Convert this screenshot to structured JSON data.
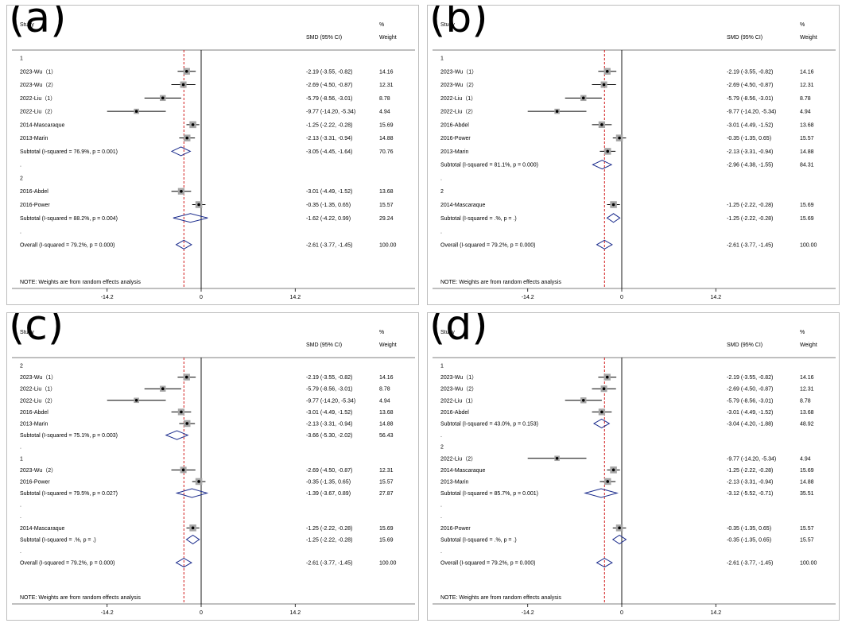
{
  "colors": {
    "ref_line": "#cc0000",
    "diamond": "#1a2b8c",
    "marker_box": "#a6a6a6",
    "frame": "#bdbdbd"
  },
  "headers": {
    "study": "Study",
    "smd": "SMD (95% CI)",
    "weight_pct": "%",
    "weight": "Weight"
  },
  "chart_data": [
    {
      "type": "forest",
      "panel_label": "(a)",
      "x_ticks": [
        -14.2,
        0,
        14.2
      ],
      "x_tick_labels": [
        "-14.2",
        "0",
        "14.2"
      ],
      "overall_line": -2.61,
      "note": "NOTE: Weights are from random effects analysis",
      "rows": [
        {
          "kind": "group",
          "label": "1"
        },
        {
          "kind": "study",
          "label": "2023-Wu（1）",
          "smd": -2.19,
          "lo": -3.55,
          "hi": -0.82,
          "ci": "-2.19 (-3.55, -0.82)",
          "weight": "14.16"
        },
        {
          "kind": "study",
          "label": "2023-Wu（2）",
          "smd": -2.69,
          "lo": -4.5,
          "hi": -0.87,
          "ci": "-2.69 (-4.50, -0.87)",
          "weight": "12.31"
        },
        {
          "kind": "study",
          "label": "2022-Liu（1）",
          "smd": -5.79,
          "lo": -8.56,
          "hi": -3.01,
          "ci": "-5.79 (-8.56, -3.01)",
          "weight": "8.78"
        },
        {
          "kind": "study",
          "label": "2022-Liu（2）",
          "smd": -9.77,
          "lo": -14.2,
          "hi": -5.34,
          "ci": "-9.77 (-14.20, -5.34)",
          "weight": "4.94"
        },
        {
          "kind": "study",
          "label": "2014-Mascaraque",
          "smd": -1.25,
          "lo": -2.22,
          "hi": -0.28,
          "ci": "-1.25 (-2.22, -0.28)",
          "weight": "15.69"
        },
        {
          "kind": "study",
          "label": "2013-Marin",
          "smd": -2.13,
          "lo": -3.31,
          "hi": -0.94,
          "ci": "-2.13 (-3.31, -0.94)",
          "weight": "14.88"
        },
        {
          "kind": "subtotal",
          "label": "Subtotal  (I-squared = 76.9%, p = 0.001)",
          "smd": -3.05,
          "lo": -4.45,
          "hi": -1.64,
          "ci": "-3.05 (-4.45, -1.64)",
          "weight": "70.76"
        },
        {
          "kind": "dot",
          "label": "."
        },
        {
          "kind": "group",
          "label": "2"
        },
        {
          "kind": "study",
          "label": "2016-Abdel",
          "smd": -3.01,
          "lo": -4.49,
          "hi": -1.52,
          "ci": "-3.01 (-4.49, -1.52)",
          "weight": "13.68"
        },
        {
          "kind": "study",
          "label": "2016-Power",
          "smd": -0.35,
          "lo": -1.35,
          "hi": 0.65,
          "ci": "-0.35 (-1.35, 0.65)",
          "weight": "15.57"
        },
        {
          "kind": "subtotal",
          "label": "Subtotal  (I-squared = 88.2%, p = 0.004)",
          "smd": -1.62,
          "lo": -4.22,
          "hi": 0.99,
          "ci": "-1.62 (-4.22, 0.99)",
          "weight": "29.24"
        },
        {
          "kind": "dot",
          "label": "."
        },
        {
          "kind": "overall",
          "label": "Overall  (I-squared = 79.2%, p = 0.000)",
          "smd": -2.61,
          "lo": -3.77,
          "hi": -1.45,
          "ci": "-2.61 (-3.77, -1.45)",
          "weight": "100.00"
        }
      ]
    },
    {
      "type": "forest",
      "panel_label": "(b)",
      "x_ticks": [
        -14.2,
        0,
        14.2
      ],
      "x_tick_labels": [
        "-14.2",
        "0",
        "14.2"
      ],
      "overall_line": -2.61,
      "note": "NOTE: Weights are from random effects analysis",
      "rows": [
        {
          "kind": "group",
          "label": "1"
        },
        {
          "kind": "study",
          "label": "2023-Wu（1）",
          "smd": -2.19,
          "lo": -3.55,
          "hi": -0.82,
          "ci": "-2.19 (-3.55, -0.82)",
          "weight": "14.16"
        },
        {
          "kind": "study",
          "label": "2023-Wu（2）",
          "smd": -2.69,
          "lo": -4.5,
          "hi": -0.87,
          "ci": "-2.69 (-4.50, -0.87)",
          "weight": "12.31"
        },
        {
          "kind": "study",
          "label": "2022-Liu（1）",
          "smd": -5.79,
          "lo": -8.56,
          "hi": -3.01,
          "ci": "-5.79 (-8.56, -3.01)",
          "weight": "8.78"
        },
        {
          "kind": "study",
          "label": "2022-Liu（2）",
          "smd": -9.77,
          "lo": -14.2,
          "hi": -5.34,
          "ci": "-9.77 (-14.20, -5.34)",
          "weight": "4.94"
        },
        {
          "kind": "study",
          "label": "2016-Abdel",
          "smd": -3.01,
          "lo": -4.49,
          "hi": -1.52,
          "ci": "-3.01 (-4.49, -1.52)",
          "weight": "13.68"
        },
        {
          "kind": "study",
          "label": "2016-Power",
          "smd": -0.35,
          "lo": -1.35,
          "hi": 0.65,
          "ci": "-0.35 (-1.35, 0.65)",
          "weight": "15.57"
        },
        {
          "kind": "study",
          "label": "2013-Marin",
          "smd": -2.13,
          "lo": -3.31,
          "hi": -0.94,
          "ci": "-2.13 (-3.31, -0.94)",
          "weight": "14.88"
        },
        {
          "kind": "subtotal",
          "label": "Subtotal  (I-squared = 81.1%, p = 0.000)",
          "smd": -2.96,
          "lo": -4.38,
          "hi": -1.55,
          "ci": "-2.96 (-4.38, -1.55)",
          "weight": "84.31"
        },
        {
          "kind": "dot",
          "label": "."
        },
        {
          "kind": "group",
          "label": "2"
        },
        {
          "kind": "study",
          "label": "2014-Mascaraque",
          "smd": -1.25,
          "lo": -2.22,
          "hi": -0.28,
          "ci": "-1.25 (-2.22, -0.28)",
          "weight": "15.69"
        },
        {
          "kind": "subtotal",
          "label": "Subtotal  (I-squared = .%, p = .)",
          "smd": -1.25,
          "lo": -2.22,
          "hi": -0.28,
          "ci": "-1.25 (-2.22, -0.28)",
          "weight": "15.69"
        },
        {
          "kind": "dot",
          "label": "."
        },
        {
          "kind": "overall",
          "label": "Overall  (I-squared = 79.2%, p = 0.000)",
          "smd": -2.61,
          "lo": -3.77,
          "hi": -1.45,
          "ci": "-2.61 (-3.77, -1.45)",
          "weight": "100.00"
        }
      ]
    },
    {
      "type": "forest",
      "panel_label": "(c)",
      "x_ticks": [
        -14.2,
        0,
        14.2
      ],
      "x_tick_labels": [
        "-14.2",
        "0",
        "14.2"
      ],
      "overall_line": -2.61,
      "note": "NOTE: Weights are from random effects analysis",
      "rows": [
        {
          "kind": "group",
          "label": "2"
        },
        {
          "kind": "study",
          "label": "2023-Wu（1）",
          "smd": -2.19,
          "lo": -3.55,
          "hi": -0.82,
          "ci": "-2.19 (-3.55, -0.82)",
          "weight": "14.16"
        },
        {
          "kind": "study",
          "label": "2022-Liu（1）",
          "smd": -5.79,
          "lo": -8.56,
          "hi": -3.01,
          "ci": "-5.79 (-8.56, -3.01)",
          "weight": "8.78"
        },
        {
          "kind": "study",
          "label": "2022-Liu（2）",
          "smd": -9.77,
          "lo": -14.2,
          "hi": -5.34,
          "ci": "-9.77 (-14.20, -5.34)",
          "weight": "4.94"
        },
        {
          "kind": "study",
          "label": "2016-Abdel",
          "smd": -3.01,
          "lo": -4.49,
          "hi": -1.52,
          "ci": "-3.01 (-4.49, -1.52)",
          "weight": "13.68"
        },
        {
          "kind": "study",
          "label": "2013-Marin",
          "smd": -2.13,
          "lo": -3.31,
          "hi": -0.94,
          "ci": "-2.13 (-3.31, -0.94)",
          "weight": "14.88"
        },
        {
          "kind": "subtotal",
          "label": "Subtotal  (I-squared = 75.1%, p = 0.003)",
          "smd": -3.66,
          "lo": -5.3,
          "hi": -2.02,
          "ci": "-3.66 (-5.30, -2.02)",
          "weight": "56.43"
        },
        {
          "kind": "dot",
          "label": "."
        },
        {
          "kind": "group",
          "label": "1"
        },
        {
          "kind": "study",
          "label": "2023-Wu（2）",
          "smd": -2.69,
          "lo": -4.5,
          "hi": -0.87,
          "ci": "-2.69 (-4.50, -0.87)",
          "weight": "12.31"
        },
        {
          "kind": "study",
          "label": "2016-Power",
          "smd": -0.35,
          "lo": -1.35,
          "hi": 0.65,
          "ci": "-0.35 (-1.35, 0.65)",
          "weight": "15.57"
        },
        {
          "kind": "subtotal",
          "label": "Subtotal  (I-squared = 79.5%, p = 0.027)",
          "smd": -1.39,
          "lo": -3.67,
          "hi": 0.89,
          "ci": "-1.39 (-3.67, 0.89)",
          "weight": "27.87"
        },
        {
          "kind": "dot",
          "label": "."
        },
        {
          "kind": "dot",
          "label": "."
        },
        {
          "kind": "study",
          "label": "2014-Mascaraque",
          "smd": -1.25,
          "lo": -2.22,
          "hi": -0.28,
          "ci": "-1.25 (-2.22, -0.28)",
          "weight": "15.69"
        },
        {
          "kind": "subtotal",
          "label": "Subtotal  (I-squared = .%, p = .)",
          "smd": -1.25,
          "lo": -2.22,
          "hi": -0.28,
          "ci": "-1.25 (-2.22, -0.28)",
          "weight": "15.69"
        },
        {
          "kind": "dot",
          "label": "."
        },
        {
          "kind": "overall",
          "label": "Overall  (I-squared = 79.2%, p = 0.000)",
          "smd": -2.61,
          "lo": -3.77,
          "hi": -1.45,
          "ci": "-2.61 (-3.77, -1.45)",
          "weight": "100.00"
        }
      ]
    },
    {
      "type": "forest",
      "panel_label": "(d)",
      "x_ticks": [
        -14.2,
        0,
        14.2
      ],
      "x_tick_labels": [
        "-14.2",
        "0",
        "14.2"
      ],
      "overall_line": -2.61,
      "note": "NOTE: Weights are from random effects analysis",
      "rows": [
        {
          "kind": "group",
          "label": "1"
        },
        {
          "kind": "study",
          "label": "2023-Wu（1）",
          "smd": -2.19,
          "lo": -3.55,
          "hi": -0.82,
          "ci": "-2.19 (-3.55, -0.82)",
          "weight": "14.16"
        },
        {
          "kind": "study",
          "label": "2023-Wu（2）",
          "smd": -2.69,
          "lo": -4.5,
          "hi": -0.87,
          "ci": "-2.69 (-4.50, -0.87)",
          "weight": "12.31"
        },
        {
          "kind": "study",
          "label": "2022-Liu（1）",
          "smd": -5.79,
          "lo": -8.56,
          "hi": -3.01,
          "ci": "-5.79 (-8.56, -3.01)",
          "weight": "8.78"
        },
        {
          "kind": "study",
          "label": "2016-Abdel",
          "smd": -3.01,
          "lo": -4.49,
          "hi": -1.52,
          "ci": "-3.01 (-4.49, -1.52)",
          "weight": "13.68"
        },
        {
          "kind": "subtotal",
          "label": "Subtotal  (I-squared = 43.0%, p = 0.153)",
          "smd": -3.04,
          "lo": -4.2,
          "hi": -1.88,
          "ci": "-3.04 (-4.20, -1.88)",
          "weight": "48.92"
        },
        {
          "kind": "dot",
          "label": "."
        },
        {
          "kind": "group",
          "label": "2"
        },
        {
          "kind": "study",
          "label": "2022-Liu（2）",
          "smd": -9.77,
          "lo": -14.2,
          "hi": -5.34,
          "ci": "-9.77 (-14.20, -5.34)",
          "weight": "4.94"
        },
        {
          "kind": "study",
          "label": "2014-Mascaraque",
          "smd": -1.25,
          "lo": -2.22,
          "hi": -0.28,
          "ci": "-1.25 (-2.22, -0.28)",
          "weight": "15.69"
        },
        {
          "kind": "study",
          "label": "2013-Marin",
          "smd": -2.13,
          "lo": -3.31,
          "hi": -0.94,
          "ci": "-2.13 (-3.31, -0.94)",
          "weight": "14.88"
        },
        {
          "kind": "subtotal",
          "label": "Subtotal  (I-squared = 85.7%, p = 0.001)",
          "smd": -3.12,
          "lo": -5.52,
          "hi": -0.71,
          "ci": "-3.12 (-5.52, -0.71)",
          "weight": "35.51"
        },
        {
          "kind": "dot",
          "label": "."
        },
        {
          "kind": "dot",
          "label": "."
        },
        {
          "kind": "study",
          "label": "2016-Power",
          "smd": -0.35,
          "lo": -1.35,
          "hi": 0.65,
          "ci": "-0.35 (-1.35, 0.65)",
          "weight": "15.57"
        },
        {
          "kind": "subtotal",
          "label": "Subtotal  (I-squared = .%, p = .)",
          "smd": -0.35,
          "lo": -1.35,
          "hi": 0.65,
          "ci": "-0.35 (-1.35, 0.65)",
          "weight": "15.57"
        },
        {
          "kind": "dot",
          "label": "."
        },
        {
          "kind": "overall",
          "label": "Overall  (I-squared = 79.2%, p = 0.000)",
          "smd": -2.61,
          "lo": -3.77,
          "hi": -1.45,
          "ci": "-2.61 (-3.77, -1.45)",
          "weight": "100.00"
        }
      ]
    }
  ]
}
